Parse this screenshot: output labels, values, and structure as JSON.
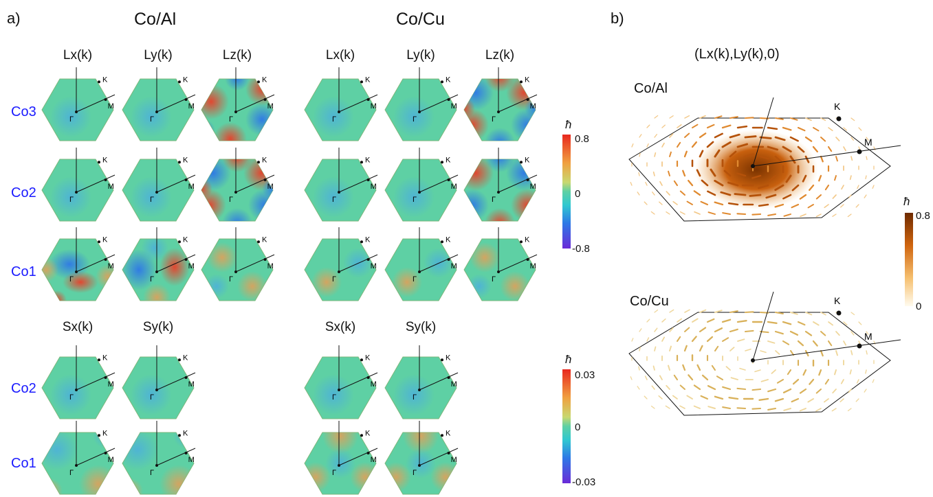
{
  "panel_a_label": "a)",
  "panel_b_label": "b)",
  "group_left_title": "Co/Al",
  "group_right_title": "Co/Cu",
  "orbital_headers": [
    "Lx(k)",
    "Ly(k)",
    "Lz(k)"
  ],
  "spin_headers": [
    "Sx(k)",
    "Sy(k)"
  ],
  "orbital_rows": [
    "Co3",
    "Co2",
    "Co1"
  ],
  "spin_rows": [
    "Co2",
    "Co1"
  ],
  "bz_points": {
    "gamma": "Γ",
    "k": "K",
    "m": "M"
  },
  "colorbar_top": {
    "unit": "ħ",
    "max": "0.8",
    "mid": "0",
    "min": "-0.8"
  },
  "colorbar_bottom": {
    "unit": "ħ",
    "max": "0.03",
    "mid": "0",
    "min": "-0.03"
  },
  "panel_b": {
    "title": "(Lx(k),Ly(k),0)",
    "top_label": "Co/Al",
    "bottom_label": "Co/Cu",
    "colorbar": {
      "unit": "ħ",
      "max": "0.8",
      "min": "0"
    }
  },
  "colors": {
    "neutral": "#5ed0a4",
    "red": "#e8402a",
    "blue": "#2e78e6",
    "purple": "#6a2bd8",
    "orange_dark": "#7a3300",
    "orange_light": "#fff8e6",
    "label_blue": "#1a1aff"
  }
}
